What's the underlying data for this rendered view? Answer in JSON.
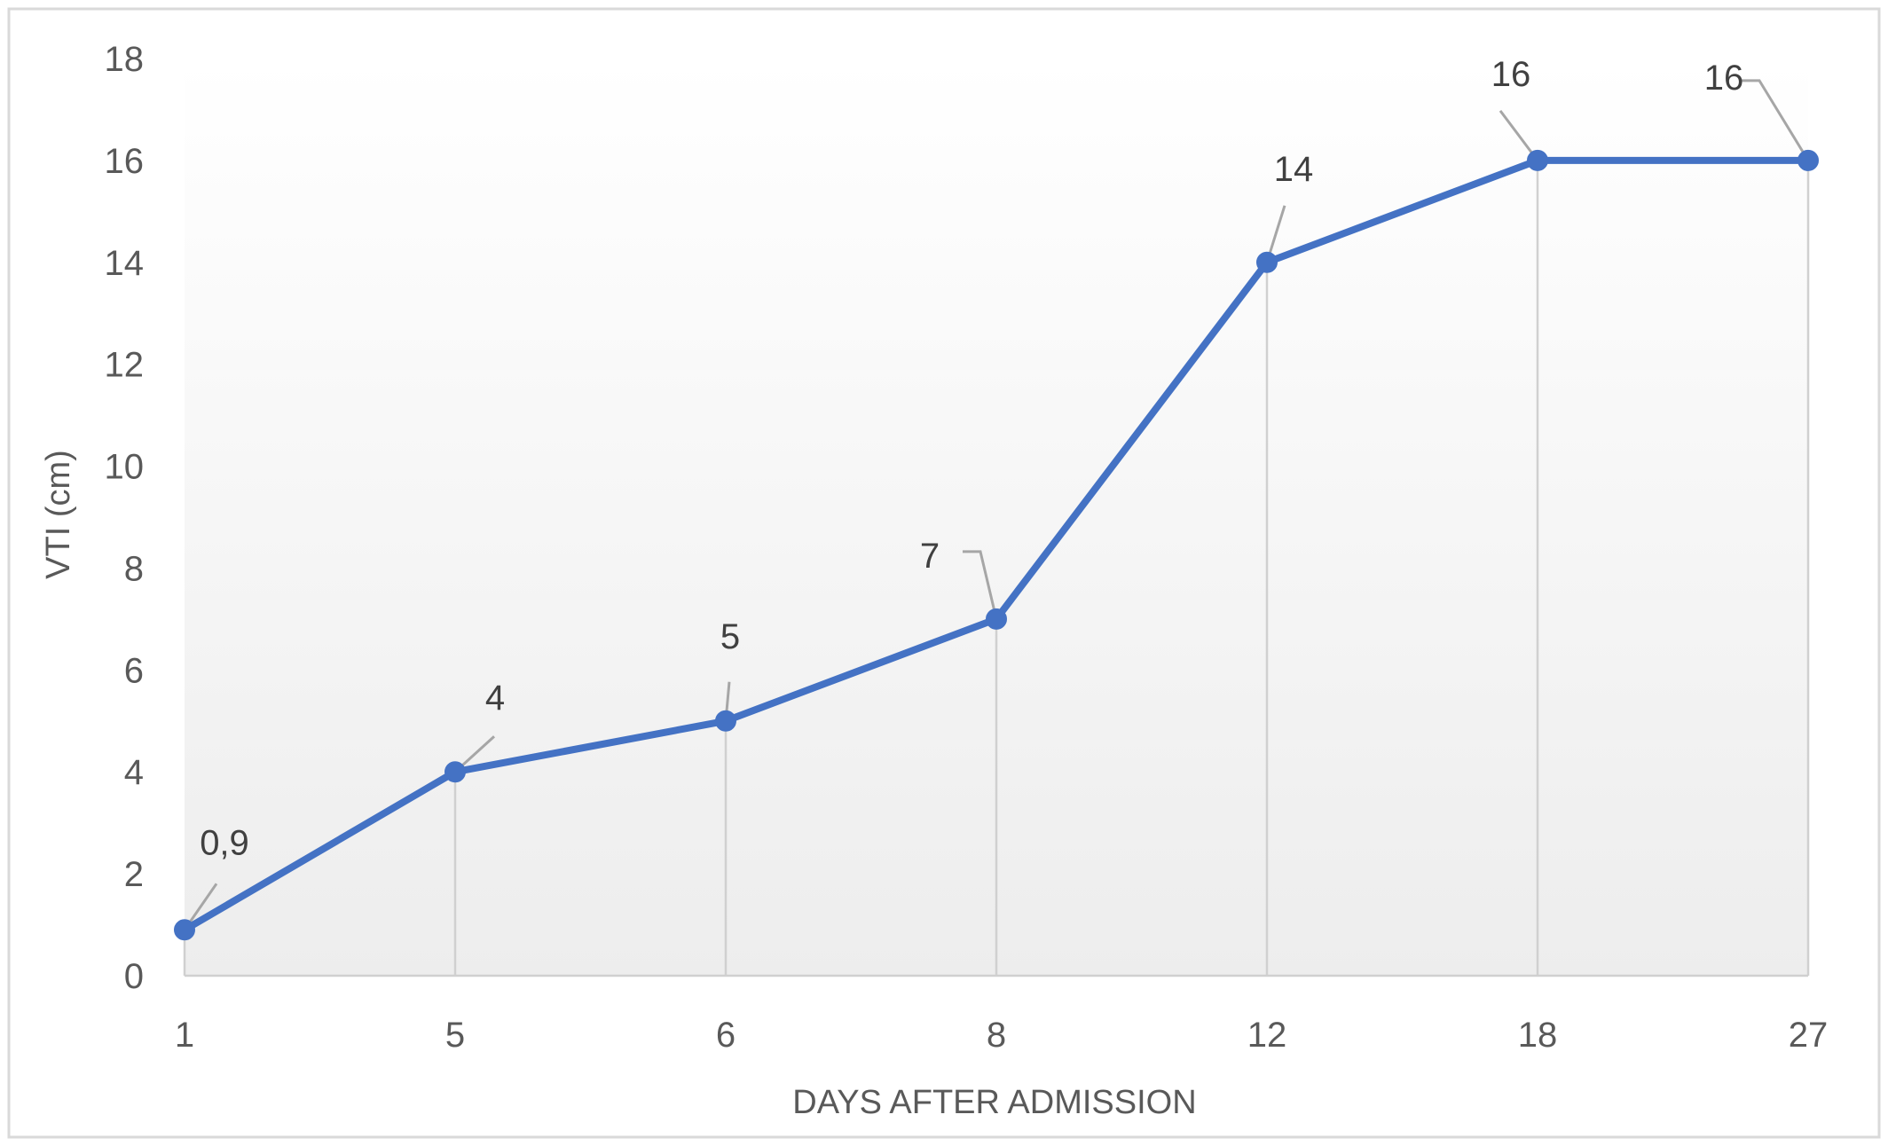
{
  "chart_data": {
    "type": "line",
    "title": "",
    "xlabel": "DAYS AFTER ADMISSION",
    "ylabel": "VTI (cm)",
    "categories": [
      "1",
      "5",
      "6",
      "8",
      "12",
      "18",
      "27"
    ],
    "series": [
      {
        "values": [
          0.9,
          4,
          5,
          7,
          14,
          16,
          16
        ],
        "labels": [
          "0,9",
          "4",
          "5",
          "7",
          "14",
          "16",
          "16"
        ]
      }
    ],
    "ylim": [
      0,
      18
    ],
    "yticks": [
      0,
      2,
      4,
      6,
      8,
      10,
      12,
      14,
      16,
      18
    ],
    "grid": "vertical drop lines at each category",
    "legend": "none",
    "colors": {
      "line": "#4472C4",
      "drop_lines": "#D0D0D0",
      "leader_lines": "#A6A6A6",
      "border": "#D9D9D9",
      "plot_gradient_top": "#FFFFFF",
      "plot_gradient_bottom": "#EDEDED"
    }
  }
}
